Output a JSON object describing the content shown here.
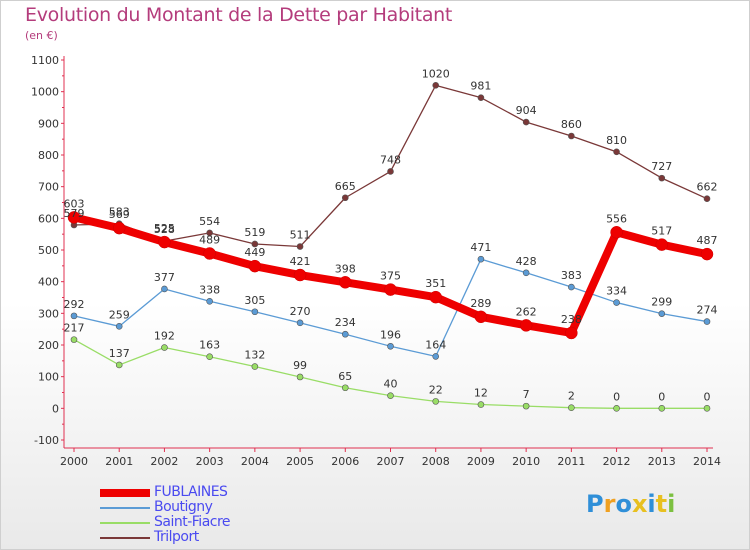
{
  "title": "Evolution du Montant de la Dette par Habitant",
  "unit": "(en €)",
  "logo": {
    "letters": [
      "P",
      "r",
      "o",
      "x",
      "i",
      "t",
      "i"
    ],
    "colors": [
      "#2f8fd8",
      "#f0a020",
      "#2f8fd8",
      "#e8c020",
      "#2f8fd8",
      "#e8c020",
      "#7cc040"
    ]
  },
  "chart_data": {
    "type": "line",
    "x": [
      "2000",
      "2001",
      "2002",
      "2003",
      "2004",
      "2005",
      "2006",
      "2007",
      "2008",
      "2009",
      "2010",
      "2011",
      "2012",
      "2013",
      "2014"
    ],
    "ylim": [
      -100,
      1100
    ],
    "yticks": [
      -100,
      0,
      100,
      200,
      300,
      400,
      500,
      600,
      700,
      800,
      900,
      1000,
      1100
    ],
    "grid": false,
    "legend_position": "bottom-left",
    "series": [
      {
        "name": "FUBLAINES",
        "color": "#ee0000",
        "values": [
          603,
          569,
          525,
          489,
          449,
          421,
          398,
          375,
          351,
          289,
          262,
          238,
          556,
          517,
          487
        ]
      },
      {
        "name": "Boutigny",
        "color": "#5b9bd5",
        "values": [
          292,
          259,
          377,
          338,
          305,
          270,
          234,
          196,
          164,
          471,
          428,
          383,
          334,
          299,
          274
        ]
      },
      {
        "name": "Saint-Fiacre",
        "color": "#99dd66",
        "values": [
          217,
          137,
          192,
          163,
          132,
          99,
          65,
          40,
          22,
          12,
          7,
          2,
          0,
          0,
          0
        ]
      },
      {
        "name": "Trilport",
        "color": "#7a3838",
        "values": [
          579,
          583,
          528,
          554,
          519,
          511,
          665,
          748,
          1020,
          981,
          904,
          860,
          810,
          727,
          662
        ]
      }
    ]
  }
}
